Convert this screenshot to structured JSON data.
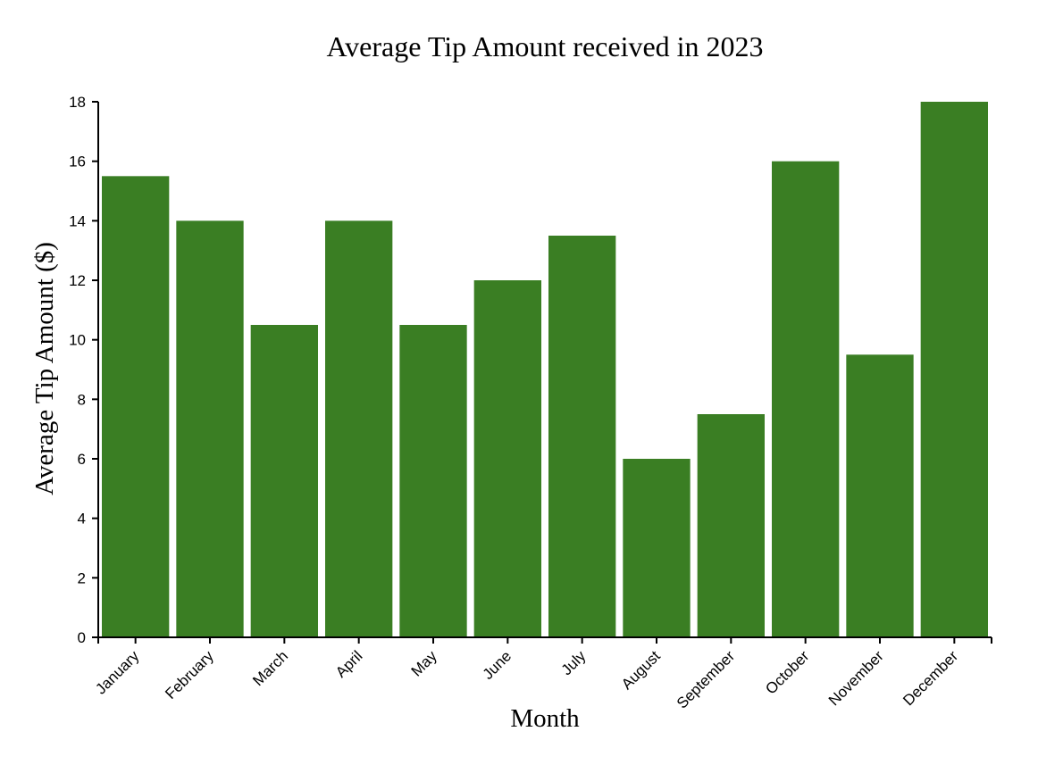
{
  "colors": {
    "bar": "#3a7e23",
    "axis": "#000000",
    "background": "#ffffff"
  },
  "chart_data": {
    "type": "bar",
    "title": "Average Tip Amount received in 2023",
    "xlabel": "Month",
    "ylabel": "Average Tip Amount ($)",
    "categories": [
      "January",
      "February",
      "March",
      "April",
      "May",
      "June",
      "July",
      "August",
      "September",
      "October",
      "November",
      "December"
    ],
    "values": [
      15.5,
      14,
      10.5,
      14,
      10.5,
      12,
      13.5,
      6,
      7.5,
      16,
      9.5,
      18
    ],
    "ylim": [
      0,
      18
    ],
    "yticks": [
      0,
      2,
      4,
      6,
      8,
      10,
      12,
      14,
      16,
      18
    ],
    "grid": false,
    "legend": "none"
  }
}
